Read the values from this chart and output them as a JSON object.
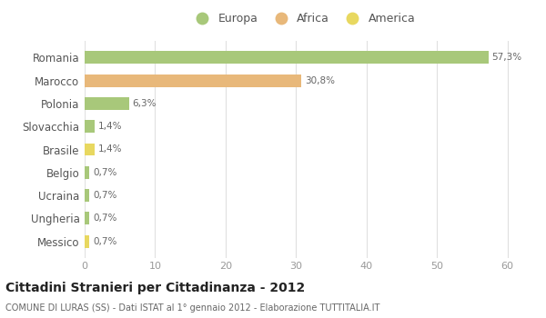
{
  "categories": [
    "Romania",
    "Marocco",
    "Polonia",
    "Slovacchia",
    "Brasile",
    "Belgio",
    "Ucraina",
    "Ungheria",
    "Messico"
  ],
  "values": [
    57.3,
    30.8,
    6.3,
    1.4,
    1.4,
    0.7,
    0.7,
    0.7,
    0.7
  ],
  "labels": [
    "57,3%",
    "30,8%",
    "6,3%",
    "1,4%",
    "1,4%",
    "0,7%",
    "0,7%",
    "0,7%",
    "0,7%"
  ],
  "colors": [
    "#a8c87a",
    "#e8b87a",
    "#a8c87a",
    "#a8c87a",
    "#e8d860",
    "#a8c87a",
    "#a8c87a",
    "#a8c87a",
    "#e8d860"
  ],
  "legend_labels": [
    "Europa",
    "Africa",
    "America"
  ],
  "legend_colors": [
    "#a8c87a",
    "#e8b87a",
    "#e8d860"
  ],
  "title": "Cittadini Stranieri per Cittadinanza - 2012",
  "subtitle": "COMUNE DI LURAS (SS) - Dati ISTAT al 1° gennaio 2012 - Elaborazione TUTTITALIA.IT",
  "xlim": [
    0,
    62
  ],
  "xticks": [
    0,
    10,
    20,
    30,
    40,
    50,
    60
  ],
  "background_color": "#ffffff",
  "grid_color": "#e0e0e0",
  "bar_height": 0.55
}
